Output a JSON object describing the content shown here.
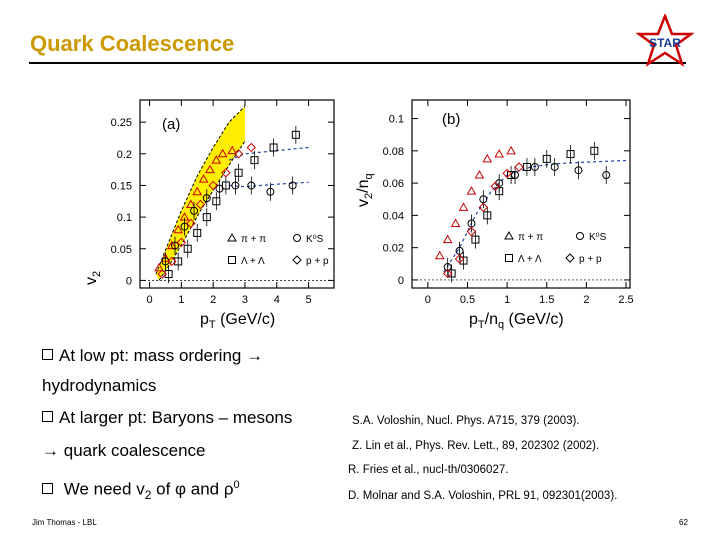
{
  "slide": {
    "title": "Quark Coalescence",
    "logo_text": "STAR",
    "title_color": "#cc9900",
    "logo_color": "#cc0000"
  },
  "bullets": {
    "b1_line1": "At low pt: mass ordering",
    "b1_line2": "hydrodynamics",
    "b2_line1": "At larger pt: Baryons – mesons",
    "b2_line2": "quark coalescence",
    "b3_pre": "We need v",
    "b3_sub": "2",
    "b3_mid": " of ",
    "b3_phi": "φ",
    "b3_and": " and ",
    "b3_rho": "ρ",
    "b3_sup": "0"
  },
  "references": [
    "S.A. Voloshin, Nucl. Phys. A715, 379 (2003).",
    "Z. Lin et al., Phys. Rev. Lett., 89, 202302 (2002).",
    "R. Fries et al., nucl-th/0306027.",
    "D. Molnar and S.A. Voloshin, PRL 91, 092301(2003)."
  ],
  "footer": {
    "author": "Jim Thomas - LBL",
    "page": "62"
  },
  "chart_data": [
    {
      "type": "scatter",
      "panel_label": "(a)",
      "xlabel_main": "p",
      "xlabel_sub": "T",
      "xlabel_rest": " (GeV/c)",
      "ylabel_main": "v",
      "ylabel_sub": "2",
      "xlim": [
        -0.3,
        5.8
      ],
      "ylim": [
        -0.012,
        0.285
      ],
      "xticks": [
        0,
        1,
        2,
        3,
        4,
        5
      ],
      "xtick_labels": [
        "0",
        "1",
        "2",
        "3",
        "4",
        "5"
      ],
      "yticks": [
        0,
        0.05,
        0.1,
        0.15,
        0.2,
        0.25
      ],
      "ytick_labels": [
        "0",
        "0.05",
        "0.1",
        "0.15",
        "0.2",
        "0.25"
      ],
      "hydro_band": {
        "upper": [
          [
            0.2,
            0.01
          ],
          [
            0.6,
            0.06
          ],
          [
            1.0,
            0.11
          ],
          [
            1.5,
            0.165
          ],
          [
            2.0,
            0.21
          ],
          [
            2.5,
            0.25
          ],
          [
            3.0,
            0.275
          ]
        ],
        "lower": [
          [
            0.3,
            0.0
          ],
          [
            0.7,
            0.03
          ],
          [
            1.1,
            0.065
          ],
          [
            1.6,
            0.11
          ],
          [
            2.1,
            0.15
          ],
          [
            2.6,
            0.19
          ],
          [
            3.0,
            0.22
          ]
        ]
      },
      "curves": [
        {
          "name": "baryon-trend",
          "points": [
            [
              2.5,
              0.19
            ],
            [
              3.0,
              0.2
            ],
            [
              4.0,
              0.205
            ],
            [
              5.0,
              0.21
            ]
          ]
        },
        {
          "name": "meson-trend",
          "points": [
            [
              2.5,
              0.15
            ],
            [
              3.0,
              0.148
            ],
            [
              4.0,
              0.152
            ],
            [
              5.0,
              0.155
            ]
          ]
        }
      ],
      "series": [
        {
          "name": "π + π",
          "symbol": "triangle",
          "points": [
            [
              0.3,
              0.02
            ],
            [
              0.5,
              0.035
            ],
            [
              0.7,
              0.055
            ],
            [
              0.9,
              0.08
            ],
            [
              1.1,
              0.1
            ],
            [
              1.3,
              0.12
            ],
            [
              1.5,
              0.14
            ],
            [
              1.7,
              0.16
            ],
            [
              1.9,
              0.175
            ],
            [
              2.1,
              0.19
            ],
            [
              2.3,
              0.2
            ],
            [
              2.6,
              0.205
            ]
          ]
        },
        {
          "name": "K⁰S",
          "symbol": "circle",
          "points": [
            [
              0.5,
              0.03
            ],
            [
              0.8,
              0.055
            ],
            [
              1.1,
              0.085
            ],
            [
              1.4,
              0.11
            ],
            [
              1.8,
              0.13
            ],
            [
              2.2,
              0.145
            ],
            [
              2.7,
              0.15
            ],
            [
              3.2,
              0.15
            ],
            [
              3.8,
              0.14
            ],
            [
              4.5,
              0.15
            ]
          ]
        },
        {
          "name": "Λ + Λ",
          "symbol": "square",
          "points": [
            [
              0.6,
              0.01
            ],
            [
              0.9,
              0.03
            ],
            [
              1.2,
              0.05
            ],
            [
              1.5,
              0.075
            ],
            [
              1.8,
              0.1
            ],
            [
              2.1,
              0.125
            ],
            [
              2.4,
              0.15
            ],
            [
              2.8,
              0.17
            ],
            [
              3.3,
              0.19
            ],
            [
              3.9,
              0.21
            ],
            [
              4.6,
              0.23
            ]
          ]
        },
        {
          "name": "p + p",
          "symbol": "diamond",
          "points": [
            [
              0.4,
              0.01
            ],
            [
              0.7,
              0.03
            ],
            [
              1.0,
              0.06
            ],
            [
              1.3,
              0.09
            ],
            [
              1.6,
              0.12
            ],
            [
              2.0,
              0.15
            ],
            [
              2.4,
              0.17
            ],
            [
              2.8,
              0.2
            ],
            [
              3.2,
              0.21
            ]
          ]
        }
      ],
      "legend": [
        "π + π",
        "K⁰S",
        "Λ + Λ",
        "p + p"
      ]
    },
    {
      "type": "scatter",
      "panel_label": "(b)",
      "xlabel_main": "p",
      "xlabel_sub": "T",
      "xlabel_mid": "/n",
      "xlabel_sub2": "q",
      "xlabel_rest": " (GeV/c)",
      "ylabel_main": "v",
      "ylabel_sub": "2",
      "ylabel_mid": "/n",
      "ylabel_sub2": "q",
      "xlim": [
        -0.2,
        2.55
      ],
      "ylim": [
        -0.005,
        0.1115
      ],
      "xticks": [
        0,
        0.5,
        1,
        1.5,
        2,
        2.5
      ],
      "xtick_labels": [
        "0",
        "0.5",
        "1",
        "1.5",
        "2",
        "2.5"
      ],
      "yticks": [
        0,
        0.02,
        0.04,
        0.06,
        0.08,
        0.1
      ],
      "ytick_labels": [
        "0",
        "0.02",
        "0.04",
        "0.06",
        "0.08",
        "0.1"
      ],
      "curves": [
        {
          "name": "scaling-fit",
          "points": [
            [
              0.2,
              0.005
            ],
            [
              0.4,
              0.02
            ],
            [
              0.6,
              0.04
            ],
            [
              0.8,
              0.055
            ],
            [
              1.0,
              0.065
            ],
            [
              1.3,
              0.07
            ],
            [
              1.6,
              0.072
            ],
            [
              2.0,
              0.073
            ],
            [
              2.5,
              0.074
            ]
          ]
        }
      ],
      "series": [
        {
          "name": "π + π",
          "symbol": "triangle",
          "points": [
            [
              0.15,
              0.015
            ],
            [
              0.25,
              0.025
            ],
            [
              0.35,
              0.035
            ],
            [
              0.45,
              0.045
            ],
            [
              0.55,
              0.055
            ],
            [
              0.65,
              0.065
            ],
            [
              0.75,
              0.075
            ],
            [
              0.9,
              0.078
            ],
            [
              1.05,
              0.08
            ]
          ]
        },
        {
          "name": "K⁰S",
          "symbol": "circle",
          "points": [
            [
              0.25,
              0.008
            ],
            [
              0.4,
              0.018
            ],
            [
              0.55,
              0.035
            ],
            [
              0.7,
              0.05
            ],
            [
              0.9,
              0.06
            ],
            [
              1.1,
              0.065
            ],
            [
              1.35,
              0.07
            ],
            [
              1.6,
              0.07
            ],
            [
              1.9,
              0.068
            ],
            [
              2.25,
              0.065
            ]
          ]
        },
        {
          "name": "Λ + Λ",
          "symbol": "square",
          "points": [
            [
              0.3,
              0.004
            ],
            [
              0.45,
              0.012
            ],
            [
              0.6,
              0.025
            ],
            [
              0.75,
              0.04
            ],
            [
              0.9,
              0.055
            ],
            [
              1.05,
              0.065
            ],
            [
              1.25,
              0.07
            ],
            [
              1.5,
              0.075
            ],
            [
              1.8,
              0.078
            ],
            [
              2.1,
              0.08
            ]
          ]
        },
        {
          "name": "p + p",
          "symbol": "diamond",
          "points": [
            [
              0.25,
              0.004
            ],
            [
              0.4,
              0.013
            ],
            [
              0.55,
              0.03
            ],
            [
              0.7,
              0.045
            ],
            [
              0.85,
              0.058
            ],
            [
              1.0,
              0.066
            ],
            [
              1.15,
              0.07
            ]
          ]
        }
      ],
      "legend": [
        "π + π",
        "K⁰S",
        "Λ + Λ",
        "p + p"
      ]
    }
  ]
}
